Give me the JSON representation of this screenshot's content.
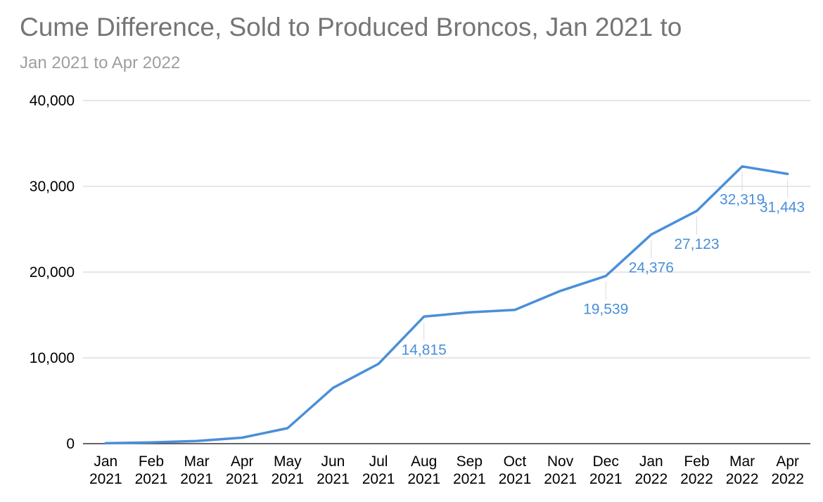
{
  "chart_data": {
    "type": "line",
    "title": "Cume Difference, Sold to Produced Broncos, Jan 2021 to",
    "subtitle": "Jan 2021 to Apr 2022",
    "xlabel": "",
    "ylabel": "",
    "categories": [
      [
        "Jan",
        "2021"
      ],
      [
        "Feb",
        "2021"
      ],
      [
        "Mar",
        "2021"
      ],
      [
        "Apr",
        "2021"
      ],
      [
        "May",
        "2021"
      ],
      [
        "Jun",
        "2021"
      ],
      [
        "Jul",
        "2021"
      ],
      [
        "Aug",
        "2021"
      ],
      [
        "Sep",
        "2021"
      ],
      [
        "Oct",
        "2021"
      ],
      [
        "Nov",
        "2021"
      ],
      [
        "Dec",
        "2021"
      ],
      [
        "Jan",
        "2022"
      ],
      [
        "Feb",
        "2022"
      ],
      [
        "Mar",
        "2022"
      ],
      [
        "Apr",
        "2022"
      ]
    ],
    "series": [
      {
        "values": [
          50,
          150,
          300,
          700,
          1800,
          6500,
          9300,
          14815,
          15300,
          15600,
          17800,
          19539,
          24376,
          27123,
          32319,
          31443
        ]
      }
    ],
    "data_labels": [
      {
        "index": 7,
        "text": "14,815"
      },
      {
        "index": 11,
        "text": "19,539"
      },
      {
        "index": 12,
        "text": "24,376"
      },
      {
        "index": 13,
        "text": "27,123"
      },
      {
        "index": 14,
        "text": "32,319"
      },
      {
        "index": 15,
        "text": "31,443"
      }
    ],
    "ylim": [
      0,
      40000
    ],
    "yticks": [
      0,
      10000,
      20000,
      30000,
      40000
    ],
    "ytick_labels": [
      "0",
      "10,000",
      "20,000",
      "30,000",
      "40,000"
    ],
    "grid": true,
    "legend": "none",
    "line_color": "#4a8fd9"
  }
}
